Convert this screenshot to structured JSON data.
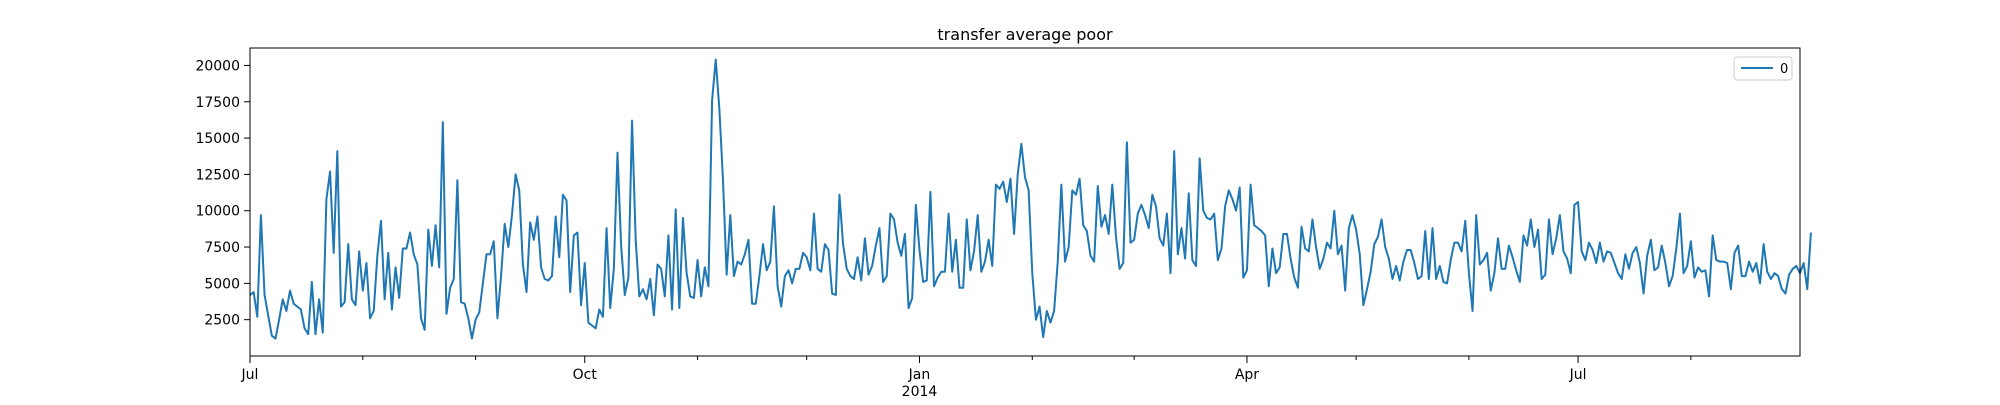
{
  "chart_data": {
    "type": "line",
    "title": "transfer average poor",
    "xlabel": "",
    "ylabel": "",
    "x_range": [
      "2013-07-01",
      "2014-08-31"
    ],
    "ylim": [
      0,
      21200
    ],
    "y_ticks": [
      2500,
      5000,
      7500,
      10000,
      12500,
      15000,
      17500,
      20000
    ],
    "y_tick_labels": [
      "2500",
      "5000",
      "7500",
      "10000",
      "12500",
      "15000",
      "17500",
      "20000"
    ],
    "x_major_ticks": [
      {
        "date": "2013-07-01",
        "label": "Jul"
      },
      {
        "date": "2013-10-01",
        "label": "Oct"
      },
      {
        "date": "2014-01-01",
        "label": "Jan",
        "sublabel": "2014"
      },
      {
        "date": "2014-04-01",
        "label": "Apr"
      },
      {
        "date": "2014-07-01",
        "label": "Jul"
      }
    ],
    "x_minor_ticks": [
      "2013-08-01",
      "2013-09-01",
      "2013-11-01",
      "2013-12-01",
      "2014-02-01",
      "2014-03-01",
      "2014-05-01",
      "2014-06-01",
      "2014-08-01"
    ],
    "grid": false,
    "legend": {
      "position": "top-right",
      "entries": [
        "0"
      ]
    },
    "colors": {
      "series": "#1f77b4",
      "axes": "#000000"
    },
    "series": [
      {
        "name": "0",
        "start_date": "2013-07-01",
        "freq": "D",
        "values": [
          4200,
          4400,
          2700,
          9700,
          4200,
          2800,
          1400,
          1200,
          2500,
          3900,
          3100,
          4500,
          3600,
          3400,
          3200,
          1900,
          1500,
          5100,
          1500,
          3900,
          1600,
          10800,
          12700,
          7100,
          14100,
          3400,
          3700,
          7700,
          3900,
          3500,
          7200,
          4500,
          6400,
          2600,
          3100,
          6900,
          9300,
          3900,
          7100,
          3200,
          6100,
          4000,
          7400,
          7400,
          8500,
          7000,
          6300,
          2600,
          1800,
          8700,
          6200,
          9000,
          6100,
          16100,
          2900,
          4700,
          5300,
          12100,
          3700,
          3600,
          2600,
          1200,
          2500,
          3000,
          5000,
          7000,
          7000,
          7900,
          2600,
          5500,
          9100,
          7500,
          9700,
          12500,
          11400,
          6300,
          4400,
          9200,
          8000,
          9600,
          6100,
          5300,
          5200,
          5500,
          9600,
          6800,
          11100,
          10700,
          4400,
          8300,
          8500,
          3500,
          6400,
          2300,
          2100,
          1900,
          3200,
          2700,
          8800,
          3300,
          6000,
          14000,
          7600,
          4200,
          5400,
          16200,
          8000,
          4100,
          4600,
          3900,
          5300,
          2800,
          6300,
          6000,
          4100,
          8300,
          3200,
          10100,
          3300,
          9500,
          5700,
          4100,
          4000,
          6600,
          4100,
          6100,
          4800,
          17600,
          20400,
          17000,
          12100,
          5600,
          9700,
          5500,
          6500,
          6300,
          7000,
          8000,
          3600,
          3600,
          5500,
          7700,
          5900,
          6500,
          10300,
          4800,
          3400,
          5500,
          5900,
          5000,
          6000,
          6000,
          7100,
          6800,
          5900,
          9800,
          6000,
          5800,
          7700,
          7300,
          4300,
          4200,
          11100,
          7700,
          6000,
          5500,
          5300,
          6800,
          5200,
          8100,
          5600,
          6200,
          7600,
          8800,
          5100,
          5500,
          9800,
          9400,
          7800,
          6900,
          8400,
          3300,
          4000,
          10400,
          7300,
          5100,
          5200,
          11300,
          4800,
          5400,
          5800,
          5800,
          9800,
          5800,
          8000,
          4700,
          4700,
          9400,
          5900,
          7200,
          9700,
          5800,
          6500,
          8000,
          6200,
          11800,
          11500,
          12000,
          10600,
          12200,
          8400,
          12500,
          14600,
          12300,
          11400,
          5700,
          2500,
          3400,
          1300,
          3100,
          2300,
          3100,
          6500,
          11800,
          6500,
          7500,
          11400,
          11100,
          12200,
          9000,
          8600,
          6900,
          6500,
          11700,
          8900,
          9700,
          8400,
          11800,
          8200,
          6000,
          6400,
          14700,
          7800,
          8000,
          9800,
          10400,
          9700,
          8800,
          11100,
          10300,
          8100,
          7600,
          9800,
          5700,
          14100,
          7000,
          8800,
          6700,
          11200,
          6600,
          6200,
          13600,
          10000,
          9500,
          9400,
          9800,
          6600,
          7400,
          10300,
          11400,
          10800,
          10000,
          11600,
          5400,
          5900,
          11800,
          9000,
          8800,
          8600,
          8300,
          4800,
          7400,
          5700,
          6100,
          8400,
          8400,
          6700,
          5400,
          4700,
          8900,
          7400,
          7200,
          9400,
          7500,
          6000,
          6700,
          7800,
          7400,
          10000,
          7000,
          7600,
          4500,
          8800,
          9700,
          8700,
          7000,
          3500,
          4600,
          5800,
          7700,
          8200,
          9400,
          7500,
          6700,
          5300,
          6200,
          5200,
          6500,
          7300,
          7300,
          6400,
          5300,
          5500,
          8600,
          5300,
          8800,
          5300,
          6200,
          5100,
          5000,
          6600,
          7800,
          7800,
          7200,
          9300,
          5700,
          3100,
          9700,
          6300,
          6600,
          7100,
          4500,
          5700,
          8100,
          6000,
          6000,
          7600,
          6800,
          5900,
          5100,
          8300,
          7600,
          9400,
          7500,
          8700,
          5300,
          5600,
          9400,
          7000,
          8100,
          9700,
          7200,
          6700,
          5700,
          10400,
          10600,
          7200,
          6600,
          7800,
          7300,
          6400,
          7800,
          6500,
          7200,
          7100,
          6400,
          5700,
          5300,
          7000,
          6000,
          7100,
          7500,
          6400,
          4300,
          6900,
          8000,
          5900,
          6100,
          7600,
          6400,
          4800,
          5500,
          7400,
          9800,
          5700,
          6200,
          7900,
          5400,
          6100,
          5800,
          5900,
          4100,
          8300,
          6600,
          6500,
          6500,
          6400,
          4600,
          7100,
          7600,
          5500,
          5500,
          6500,
          5800,
          6400,
          5000,
          7700,
          5800,
          5300,
          5700,
          5500,
          4600,
          4300,
          5600,
          6000,
          6200,
          5700,
          6400,
          4600,
          8500
        ]
      }
    ]
  }
}
